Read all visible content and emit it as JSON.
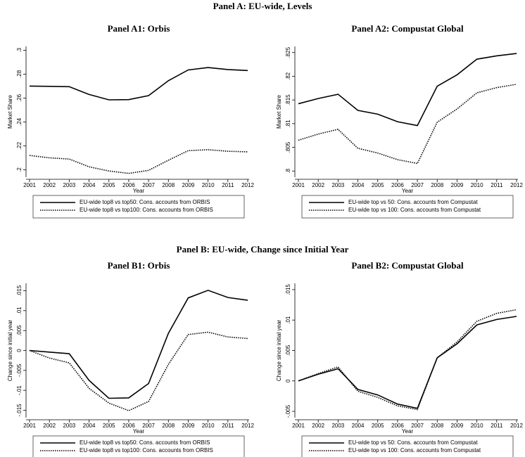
{
  "headings": [
    "Panel A: EU-wide, Levels",
    "Panel B: EU-wide, Change since Initial Year"
  ],
  "chart_data": [
    {
      "type": "line",
      "title": "Panel A1:  Orbis",
      "x_label": "Year",
      "y_label": "Market Share",
      "x": [
        2001,
        2002,
        2003,
        2004,
        2005,
        2006,
        2007,
        2008,
        2009,
        2010,
        2011,
        2012
      ],
      "xlim": [
        2001,
        2012
      ],
      "xticks": [
        2001,
        2002,
        2003,
        2004,
        2005,
        2006,
        2007,
        2008,
        2009,
        2010,
        2011,
        2012
      ],
      "ylim": [
        0.195,
        0.302
      ],
      "yticks": [
        {
          "value": 0.2,
          "label": ".2"
        },
        {
          "value": 0.22,
          "label": ".22"
        },
        {
          "value": 0.24,
          "label": ".24"
        },
        {
          "value": 0.26,
          "label": ".26"
        },
        {
          "value": 0.28,
          "label": ".28"
        },
        {
          "value": 0.3,
          "label": ".3"
        }
      ],
      "grid": false,
      "series": [
        {
          "name": "EU-wide top8 vs top50: Cons. accounts from ORBIS",
          "color": "#000000",
          "linestyle": "solid",
          "values": [
            0.27,
            0.2698,
            0.2695,
            0.263,
            0.2585,
            0.2587,
            0.262,
            0.2745,
            0.2835,
            0.2855,
            0.2838,
            0.283
          ]
        },
        {
          "name": "EU-wide top8 vs top100: Cons. accounts from ORBIS",
          "color": "#000000",
          "linestyle": "dotted",
          "values": [
            0.212,
            0.21,
            0.209,
            0.2025,
            0.199,
            0.197,
            0.1995,
            0.208,
            0.216,
            0.2168,
            0.2155,
            0.215
          ]
        }
      ]
    },
    {
      "type": "line",
      "title": "Panel A2:  Compustat Global",
      "x_label": "Year",
      "y_label": "Market Share",
      "x": [
        2001,
        2002,
        2003,
        2004,
        2005,
        2006,
        2007,
        2008,
        2009,
        2010,
        2011,
        2012
      ],
      "xlim": [
        2001,
        2012
      ],
      "xticks": [
        2001,
        2002,
        2003,
        2004,
        2005,
        2006,
        2007,
        2008,
        2009,
        2010,
        2011,
        2012
      ],
      "ylim": [
        0.799,
        0.826
      ],
      "yticks": [
        {
          "value": 0.8,
          "label": ".8"
        },
        {
          "value": 0.805,
          "label": ".805"
        },
        {
          "value": 0.81,
          "label": ".81"
        },
        {
          "value": 0.815,
          "label": ".815"
        },
        {
          "value": 0.82,
          "label": ".82"
        },
        {
          "value": 0.825,
          "label": ".825"
        }
      ],
      "grid": false,
      "series": [
        {
          "name": "EU-wide top vs 50: Cons. accounts from Compustat",
          "color": "#000000",
          "linestyle": "solid",
          "values": [
            0.8142,
            0.8153,
            0.8162,
            0.8128,
            0.812,
            0.8104,
            0.8096,
            0.8179,
            0.8203,
            0.8236,
            0.8243,
            0.8248
          ]
        },
        {
          "name": "EU-wide top vs 100: Cons. accounts from Compustat",
          "color": "#000000",
          "linestyle": "dotted",
          "values": [
            0.8065,
            0.8078,
            0.8088,
            0.8048,
            0.8038,
            0.8024,
            0.8016,
            0.8103,
            0.8131,
            0.8165,
            0.8176,
            0.8183
          ]
        }
      ]
    },
    {
      "type": "line",
      "title": "Panel B1:  Orbis",
      "x_label": "Year",
      "y_label": "Change since initial year",
      "x": [
        2001,
        2002,
        2003,
        2004,
        2005,
        2006,
        2007,
        2008,
        2009,
        2010,
        2011,
        2012
      ],
      "xlim": [
        2001,
        2012
      ],
      "xticks": [
        2001,
        2002,
        2003,
        2004,
        2005,
        2006,
        2007,
        2008,
        2009,
        2010,
        2011,
        2012
      ],
      "ylim": [
        -0.0165,
        0.0165
      ],
      "yticks": [
        {
          "value": -0.015,
          "label": "-.015"
        },
        {
          "value": -0.01,
          "label": "-.01"
        },
        {
          "value": -0.005,
          "label": "-.005"
        },
        0,
        {
          "value": 0.005,
          "label": ".005"
        },
        {
          "value": 0.01,
          "label": ".01"
        },
        {
          "value": 0.015,
          "label": ".015"
        }
      ],
      "grid": false,
      "series": [
        {
          "name": "EU-wide top8 vs top50: Cons. accounts from ORBIS",
          "color": "#000000",
          "linestyle": "solid",
          "values": [
            0,
            -0.0004,
            -0.0008,
            -0.0075,
            -0.012,
            -0.0119,
            -0.0083,
            0.0043,
            0.0132,
            0.0151,
            0.0133,
            0.0126
          ]
        },
        {
          "name": "EU-wide top8 vs top100: Cons. accounts from ORBIS",
          "color": "#000000",
          "linestyle": "dotted",
          "values": [
            0,
            -0.0019,
            -0.0031,
            -0.0095,
            -0.0132,
            -0.0151,
            -0.0128,
            -0.0035,
            0.004,
            0.0046,
            0.0034,
            0.003
          ]
        }
      ]
    },
    {
      "type": "line",
      "title": "Panel B2:  Compustat Global",
      "x_label": "Year",
      "y_label": "Change since initial year",
      "x": [
        2001,
        2002,
        2003,
        2004,
        2005,
        2006,
        2007,
        2008,
        2009,
        2010,
        2011,
        2012
      ],
      "xlim": [
        2001,
        2012
      ],
      "xticks": [
        2001,
        2002,
        2003,
        2004,
        2005,
        2006,
        2007,
        2008,
        2009,
        2010,
        2011,
        2012
      ],
      "ylim": [
        -0.0058,
        0.0158
      ],
      "yticks": [
        {
          "value": -0.005,
          "label": "-.005"
        },
        0,
        {
          "value": 0.005,
          "label": ".005"
        },
        {
          "value": 0.01,
          "label": ".01"
        },
        {
          "value": 0.015,
          "label": ".015"
        }
      ],
      "grid": false,
      "series": [
        {
          "name": "EU-wide top vs 50: Cons. accounts from Compustat",
          "color": "#000000",
          "linestyle": "solid",
          "values": [
            0,
            0.0011,
            0.002,
            -0.0014,
            -0.0023,
            -0.0038,
            -0.0045,
            0.0038,
            0.0061,
            0.0092,
            0.0101,
            0.0106
          ]
        },
        {
          "name": "EU-wide top vs 100: Cons. accounts from Compustat",
          "color": "#000000",
          "linestyle": "dotted",
          "values": [
            0,
            0.0012,
            0.0023,
            -0.0017,
            -0.0027,
            -0.0041,
            -0.0047,
            0.0038,
            0.0064,
            0.0098,
            0.0111,
            0.0117
          ]
        }
      ]
    }
  ]
}
